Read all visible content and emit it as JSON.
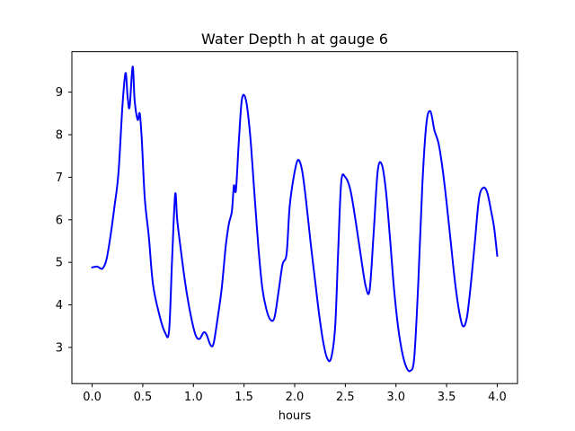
{
  "chart_data": {
    "type": "line",
    "title": "Water Depth h at gauge 6",
    "xlabel": "hours",
    "ylabel": "",
    "xlim": [
      -0.2,
      4.2
    ],
    "ylim": [
      2.15,
      9.95
    ],
    "xticks": [
      0.0,
      0.5,
      1.0,
      1.5,
      2.0,
      2.5,
      3.0,
      3.5,
      4.0
    ],
    "xtick_labels": [
      "0.0",
      "0.5",
      "1.0",
      "1.5",
      "2.0",
      "2.5",
      "3.0",
      "3.5",
      "4.0"
    ],
    "yticks": [
      3,
      4,
      5,
      6,
      7,
      8,
      9
    ],
    "ytick_labels": [
      "3",
      "4",
      "5",
      "6",
      "7",
      "8",
      "9"
    ],
    "grid": false,
    "series": [
      {
        "color": "#0000ff",
        "x": [
          0.0,
          0.05,
          0.1,
          0.14,
          0.18,
          0.22,
          0.26,
          0.3,
          0.33,
          0.35,
          0.37,
          0.4,
          0.42,
          0.45,
          0.47,
          0.49,
          0.52,
          0.56,
          0.6,
          0.66,
          0.72,
          0.76,
          0.79,
          0.82,
          0.84,
          0.87,
          0.92,
          0.97,
          1.02,
          1.06,
          1.1,
          1.13,
          1.17,
          1.2,
          1.24,
          1.28,
          1.32,
          1.35,
          1.38,
          1.4,
          1.42,
          1.45,
          1.48,
          1.52,
          1.56,
          1.6,
          1.64,
          1.68,
          1.72,
          1.76,
          1.8,
          1.84,
          1.88,
          1.92,
          1.95,
          1.99,
          2.03,
          2.07,
          2.11,
          2.16,
          2.2,
          2.24,
          2.28,
          2.32,
          2.36,
          2.4,
          2.43,
          2.46,
          2.5,
          2.55,
          2.6,
          2.65,
          2.7,
          2.74,
          2.78,
          2.82,
          2.86,
          2.9,
          2.94,
          2.98,
          3.02,
          3.06,
          3.1,
          3.14,
          3.18,
          3.22,
          3.26,
          3.3,
          3.34,
          3.38,
          3.42,
          3.46,
          3.5,
          3.54,
          3.58,
          3.62,
          3.66,
          3.7,
          3.74,
          3.78,
          3.82,
          3.86,
          3.9,
          3.94,
          3.97,
          4.0
        ],
        "y": [
          4.88,
          4.9,
          4.85,
          5.05,
          5.6,
          6.3,
          7.1,
          8.7,
          9.45,
          8.9,
          8.65,
          9.6,
          8.8,
          8.35,
          8.5,
          7.9,
          6.5,
          5.6,
          4.5,
          3.8,
          3.35,
          3.4,
          5.1,
          6.6,
          6.0,
          5.4,
          4.5,
          3.8,
          3.3,
          3.2,
          3.35,
          3.3,
          3.05,
          3.1,
          3.7,
          4.4,
          5.4,
          5.9,
          6.2,
          6.8,
          6.7,
          7.9,
          8.85,
          8.8,
          8.0,
          6.7,
          5.4,
          4.4,
          3.9,
          3.65,
          3.7,
          4.3,
          4.95,
          5.2,
          6.3,
          7.0,
          7.4,
          7.2,
          6.5,
          5.4,
          4.6,
          3.8,
          3.15,
          2.75,
          2.75,
          3.5,
          5.3,
          6.9,
          7.0,
          6.7,
          6.0,
          5.2,
          4.45,
          4.35,
          5.7,
          7.15,
          7.3,
          6.7,
          5.6,
          4.4,
          3.5,
          2.9,
          2.55,
          2.45,
          2.75,
          4.5,
          6.8,
          8.25,
          8.55,
          8.1,
          7.8,
          7.2,
          6.4,
          5.5,
          4.6,
          3.9,
          3.5,
          3.7,
          4.5,
          5.5,
          6.5,
          6.75,
          6.65,
          6.2,
          5.8,
          5.15
        ]
      }
    ]
  }
}
